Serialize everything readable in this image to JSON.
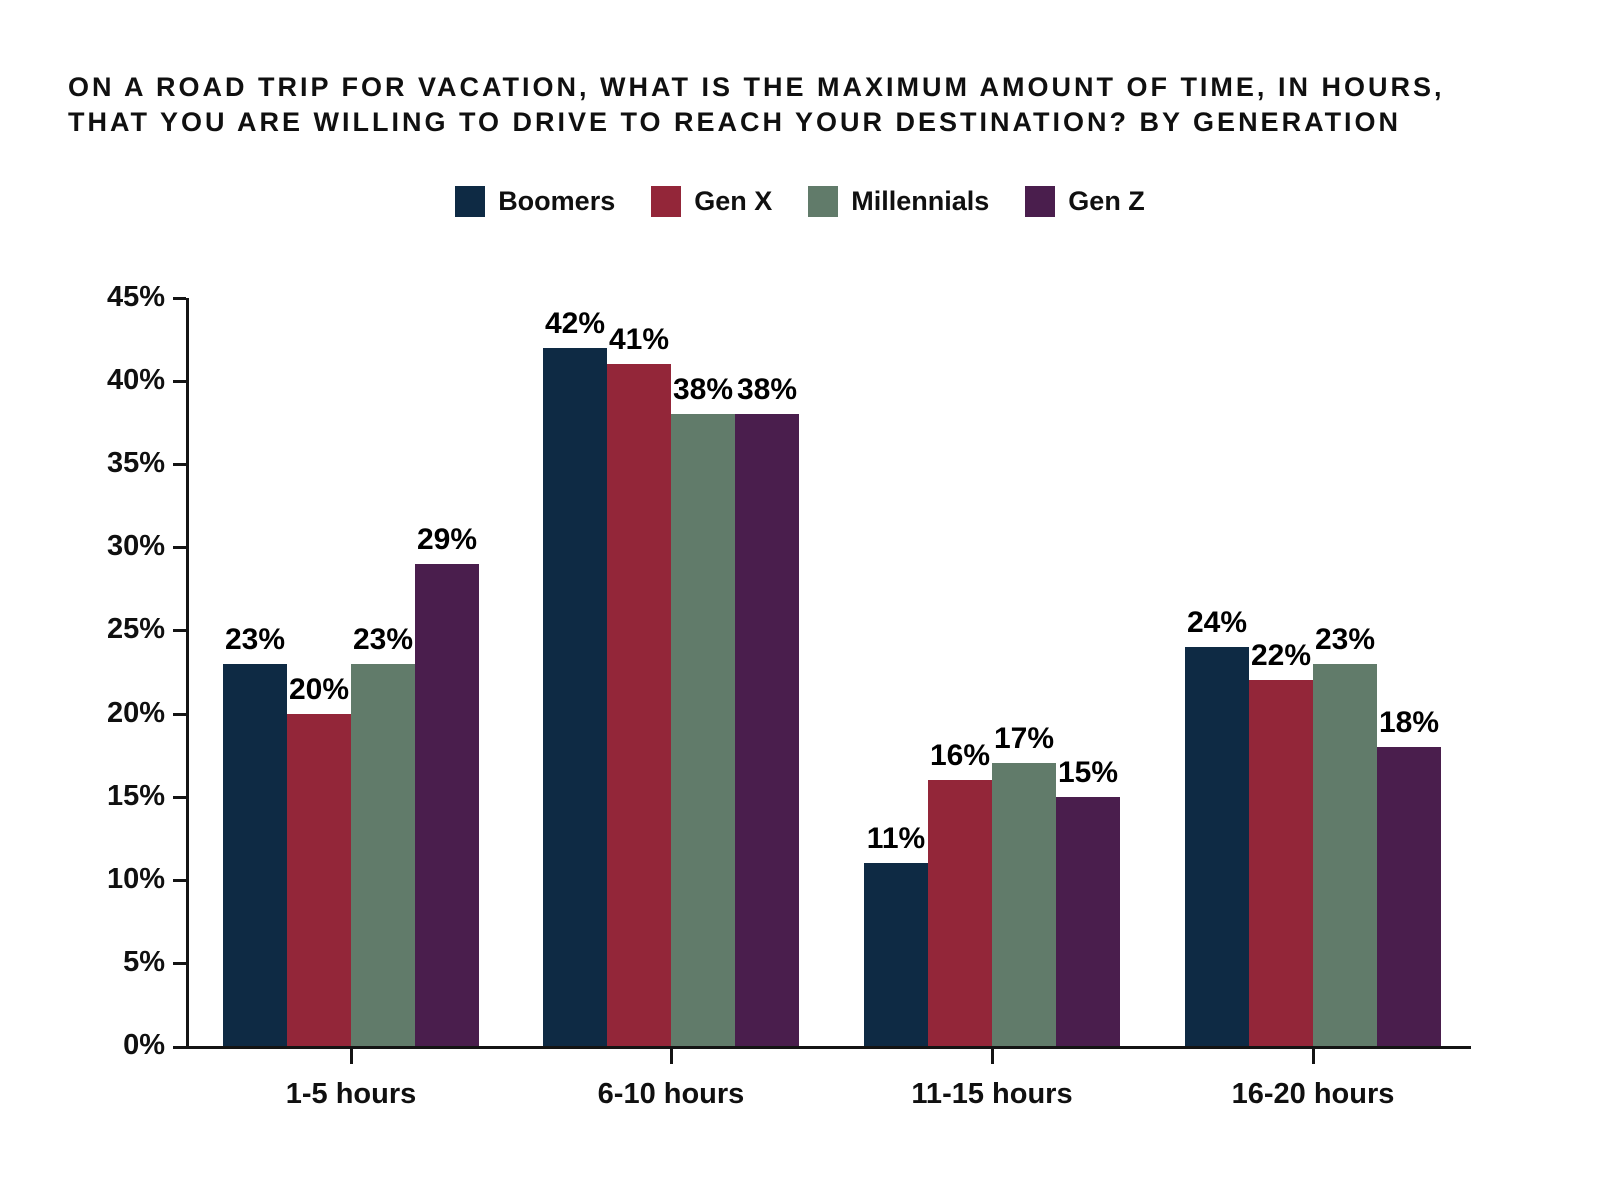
{
  "title": {
    "lines": [
      "ON A ROAD TRIP FOR VACATION, WHAT IS THE MAXIMUM AMOUNT OF TIME, IN HOURS,",
      "THAT YOU ARE WILLING TO DRIVE TO REACH YOUR DESTINATION? BY GENERATION"
    ]
  },
  "colors": {
    "axis": "#141414",
    "text": "#101010",
    "background": "#ffffff"
  },
  "chart_data": {
    "type": "bar",
    "title": "On a road trip for vacation, what is the maximum amount of time, in hours, that you are willing to drive to reach your destination? By generation",
    "categories": [
      "1-5 hours",
      "6-10 hours",
      "11-15 hours",
      "16-20 hours"
    ],
    "series": [
      {
        "name": "Boomers",
        "color": "#0e2a44",
        "values": [
          23,
          42,
          11,
          24
        ]
      },
      {
        "name": "Gen X",
        "color": "#932639",
        "values": [
          20,
          41,
          16,
          22
        ]
      },
      {
        "name": "Millennials",
        "color": "#617b6a",
        "values": [
          23,
          38,
          17,
          23
        ]
      },
      {
        "name": "Gen Z",
        "color": "#4a1e4d",
        "values": [
          29,
          38,
          15,
          18
        ]
      }
    ],
    "y_axis": {
      "min": 0,
      "max": 45,
      "step": 5,
      "tick_labels": [
        "0%",
        "5%",
        "10%",
        "15%",
        "20%",
        "25%",
        "30%",
        "35%",
        "40%",
        "45%"
      ]
    },
    "data_labels": [
      "23%",
      "20%",
      "23%",
      "29%",
      "42%",
      "41%",
      "38%",
      "38%",
      "11%",
      "16%",
      "17%",
      "15%",
      "24%",
      "22%",
      "23%",
      "18%"
    ],
    "data_label_suffix": "%",
    "legend_position": "top-center",
    "grid": false,
    "xlabel": "",
    "ylabel": ""
  }
}
